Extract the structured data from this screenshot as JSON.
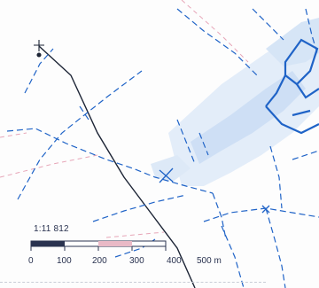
{
  "map": {
    "scale_ratio": "1:11 812",
    "scale_labels": [
      "0",
      "100",
      "200",
      "300",
      "400",
      "500 m"
    ],
    "colors": {
      "line_blue": "#1f63c7",
      "road_black": "#1c2435",
      "pink_boundary": "#e7a6b8",
      "blue_fill": "#9fc3ee"
    },
    "icons": [
      "crosshair-marker-icon"
    ]
  }
}
